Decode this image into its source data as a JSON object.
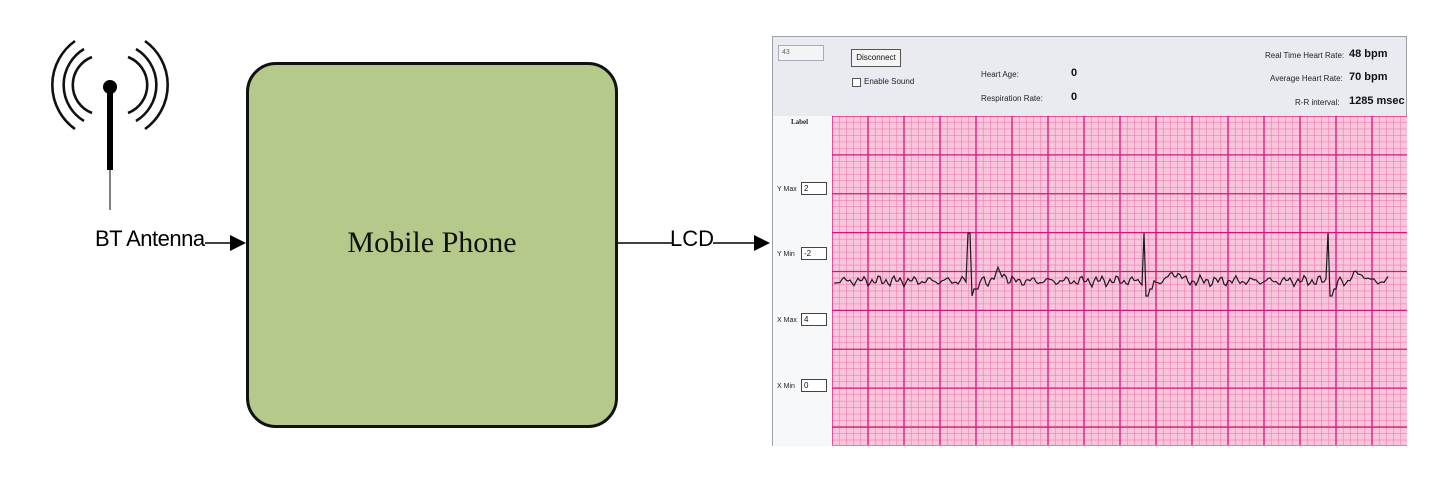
{
  "diagram": {
    "antenna_label": "BT Antenna",
    "phone_label": "Mobile Phone",
    "lcd_label": "LCD"
  },
  "lcd": {
    "top_field_value": "43",
    "disconnect_label": "Disconnect",
    "enable_sound_label": "Enable Sound",
    "heart_age_label": "Heart Age:",
    "heart_age_value": "0",
    "respiration_label": "Respiration Rate:",
    "respiration_value": "0",
    "rt_hr_label": "Real Time Heart Rate:",
    "rt_hr_value": "48 bpm",
    "avg_hr_label": "Average Heart Rate:",
    "avg_hr_value": "70 bpm",
    "rr_label": "R-R interval:",
    "rr_value": "1285 msec",
    "side_title": "Label",
    "ymax_label": "Y Max",
    "ymax_value": "2",
    "ymin_label": "Y Min",
    "ymin_value": "-2",
    "xmax_label": "X Max",
    "xmax_value": "4",
    "xmin_label": "X Min",
    "xmin_value": "0"
  },
  "colors": {
    "phone_fill": "#b5c98a",
    "grid_bg": "#f7c6dc",
    "grid_minor": "#ee6fa8",
    "grid_major": "#d6147a",
    "trace": "#1a1a1a"
  }
}
